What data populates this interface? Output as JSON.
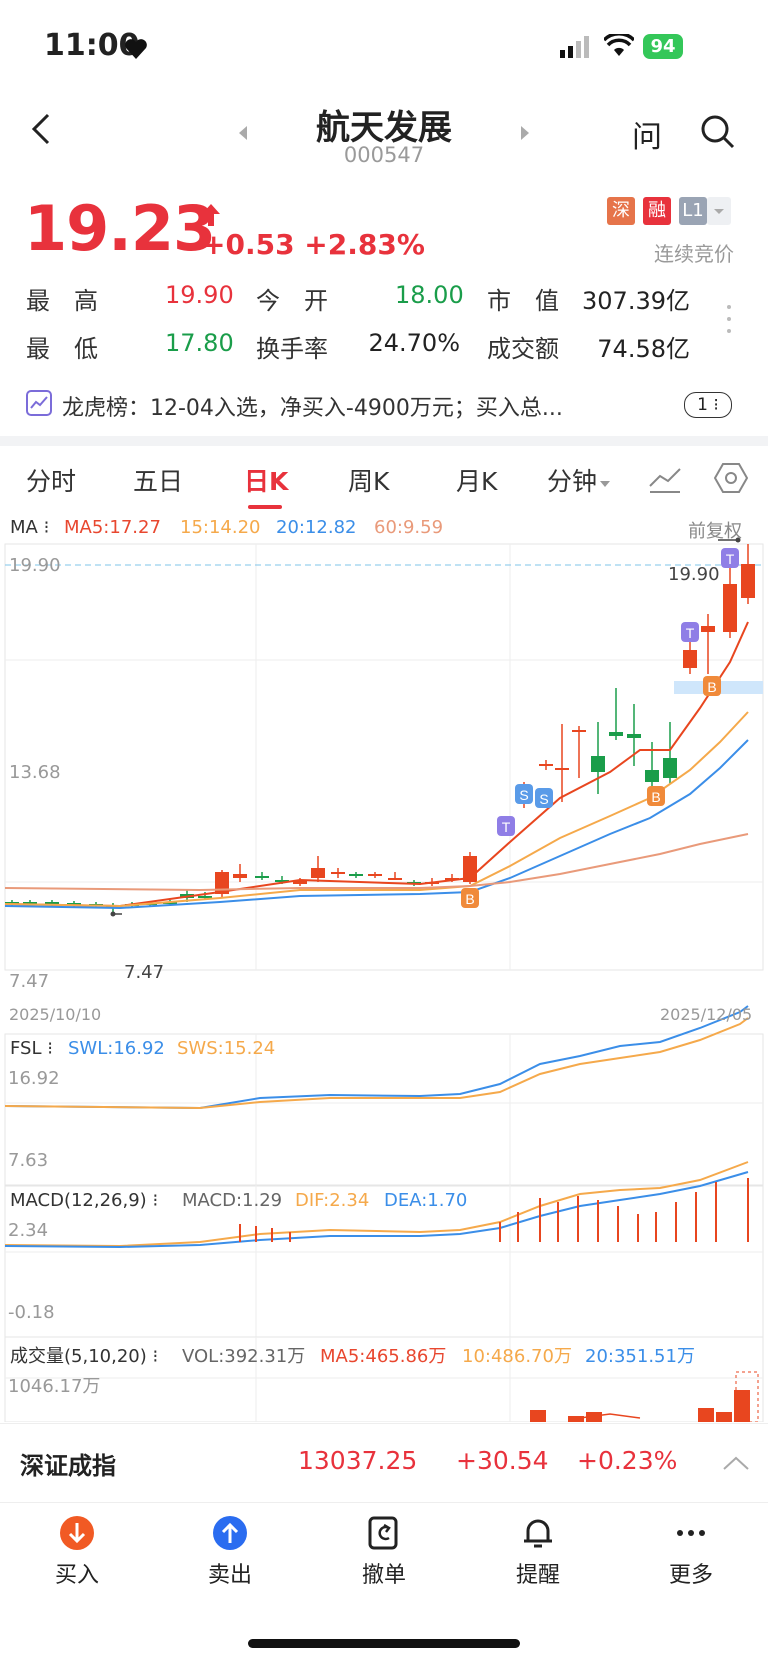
{
  "status": {
    "time": "11:00",
    "battery": "94"
  },
  "header": {
    "title": "航天发展",
    "code": "000547",
    "ask_icon": "问"
  },
  "quote": {
    "price": "19.23",
    "change": "+0.53",
    "change_pct": "+2.83%",
    "tags": [
      "深",
      "融",
      "L1"
    ],
    "trade_state": "连续竞价",
    "stats": [
      {
        "label": "最　高",
        "value": "19.90"
      },
      {
        "label": "今　开",
        "value": "18.00"
      },
      {
        "label": "市　值",
        "value": "307.39亿"
      },
      {
        "label": "最　低",
        "value": "17.80"
      },
      {
        "label": "换手率",
        "value": "24.70%"
      },
      {
        "label": "成交额",
        "value": "74.58亿"
      }
    ]
  },
  "dragon_tiger": {
    "text": "龙虎榜：12-04入选，净买入-4900万元；买入总...",
    "count": "1"
  },
  "tabs": [
    "分时",
    "五日",
    "日K",
    "周K",
    "月K",
    "分钟"
  ],
  "chart": {
    "ma_label": "MA",
    "ma5": "MA5:17.27",
    "ma15": "15:14.20",
    "ma20": "20:12.82",
    "ma60": "60:9.59",
    "adjust": "前复权",
    "y_top": "19.90",
    "y_mid": "13.68",
    "y_low": "7.47",
    "low_mark": "7.47",
    "high_mark": "19.90",
    "date_start": "2025/10/10",
    "date_end": "2025/12/05",
    "fsl_label": "FSL",
    "swl": "SWL:16.92",
    "sws": "SWS:15.24",
    "fsl_top": "16.92",
    "fsl_low": "7.63",
    "macd_label": "MACD(12,26,9)",
    "macd": "MACD:1.29",
    "dif": "DIF:2.34",
    "dea": "DEA:1.70",
    "macd_top": "2.34",
    "macd_low": "-0.18",
    "vol_label": "成交量(5,10,20)",
    "vol": "VOL:392.31万",
    "vol_ma5": "MA5:465.86万",
    "vol_ma10": "10:486.70万",
    "vol_ma20": "20:351.51万",
    "vol_top": "1046.17万"
  },
  "index_bar": {
    "name": "深证成指",
    "value": "13037.25",
    "change": "+30.54",
    "change_pct": "+0.23%"
  },
  "toolbar": {
    "buy": "买入",
    "sell": "卖出",
    "cancel": "撤单",
    "alert": "提醒",
    "more": "更多"
  }
}
